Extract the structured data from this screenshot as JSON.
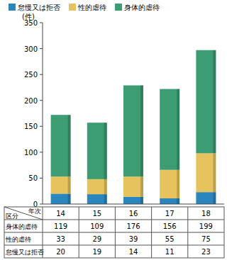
{
  "chart_data": {
    "type": "bar",
    "stacked": true,
    "grid": false,
    "legend": "top",
    "ylabel": "(件)",
    "xlabel": "年次",
    "annotations": [
      "区分"
    ],
    "categories": [
      "14",
      "15",
      "16",
      "17",
      "18"
    ],
    "series": [
      {
        "name": "怠慢又は拒否",
        "color": "#2b86bd",
        "values": [
          20,
          19,
          14,
          11,
          23
        ]
      },
      {
        "name": "性的虐待",
        "color": "#e6c35c",
        "values": [
          33,
          29,
          39,
          55,
          75
        ]
      },
      {
        "name": "身体的虐待",
        "color": "#3c9c72",
        "values": [
          119,
          109,
          176,
          156,
          199
        ]
      }
    ],
    "ylim": [
      0,
      350
    ],
    "yticks": [
      0,
      50,
      100,
      150,
      200,
      250,
      300,
      350
    ]
  }
}
